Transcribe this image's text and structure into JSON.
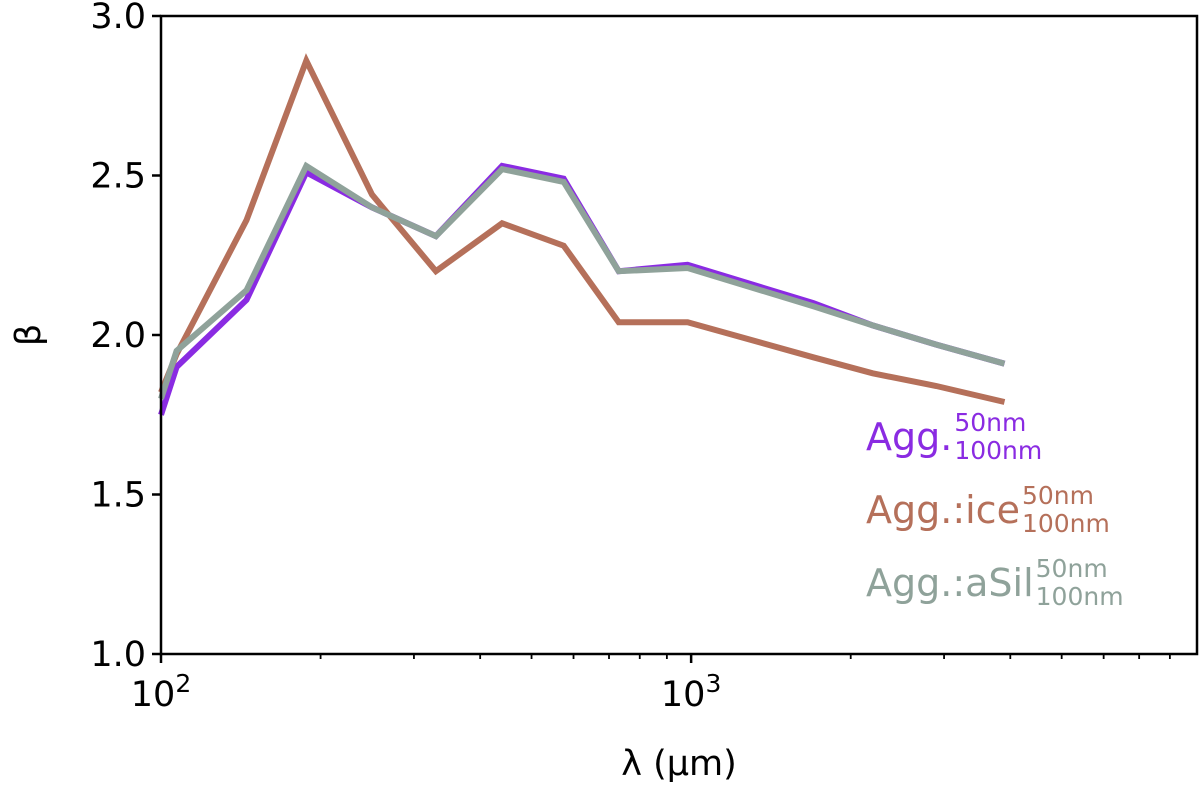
{
  "chart_data": {
    "type": "line",
    "title": "",
    "xlabel": "λ (μm)",
    "ylabel": "β",
    "xscale": "log",
    "xlim": [
      100,
      9000
    ],
    "ylim": [
      1.0,
      3.0
    ],
    "yticks": [
      1.0,
      1.5,
      2.0,
      2.5,
      3.0
    ],
    "ytick_labels": [
      "1.0",
      "1.5",
      "2.0",
      "2.5",
      "3.0"
    ],
    "xticks": [
      100,
      1000
    ],
    "xtick_labels": [
      {
        "base": "10",
        "exp": "2"
      },
      {
        "base": "10",
        "exp": "3"
      }
    ],
    "x": [
      100,
      107,
      145,
      188,
      250,
      330,
      440,
      575,
      730,
      985,
      1700,
      2200,
      2900,
      3900
    ],
    "series": [
      {
        "name": "Agg.",
        "sup": "50nm",
        "sub": "100nm",
        "color": "#8a2be2",
        "values": [
          1.75,
          1.9,
          2.11,
          2.51,
          2.4,
          2.31,
          2.53,
          2.49,
          2.2,
          2.22,
          2.1,
          2.03,
          1.97,
          1.91
        ]
      },
      {
        "name": "Agg.:ice",
        "sup": "50nm",
        "sub": "100nm",
        "color": "#b5705a",
        "values": [
          1.82,
          1.94,
          2.36,
          2.86,
          2.44,
          2.2,
          2.35,
          2.28,
          2.04,
          2.04,
          1.93,
          1.88,
          1.84,
          1.79
        ]
      },
      {
        "name": "Agg.:aSil",
        "sup": "50nm",
        "sub": "100nm",
        "color": "#8fa29a",
        "values": [
          1.8,
          1.95,
          2.14,
          2.53,
          2.4,
          2.31,
          2.52,
          2.48,
          2.2,
          2.21,
          2.09,
          2.03,
          1.97,
          1.91
        ]
      }
    ],
    "legend_position": "right, below lines"
  }
}
